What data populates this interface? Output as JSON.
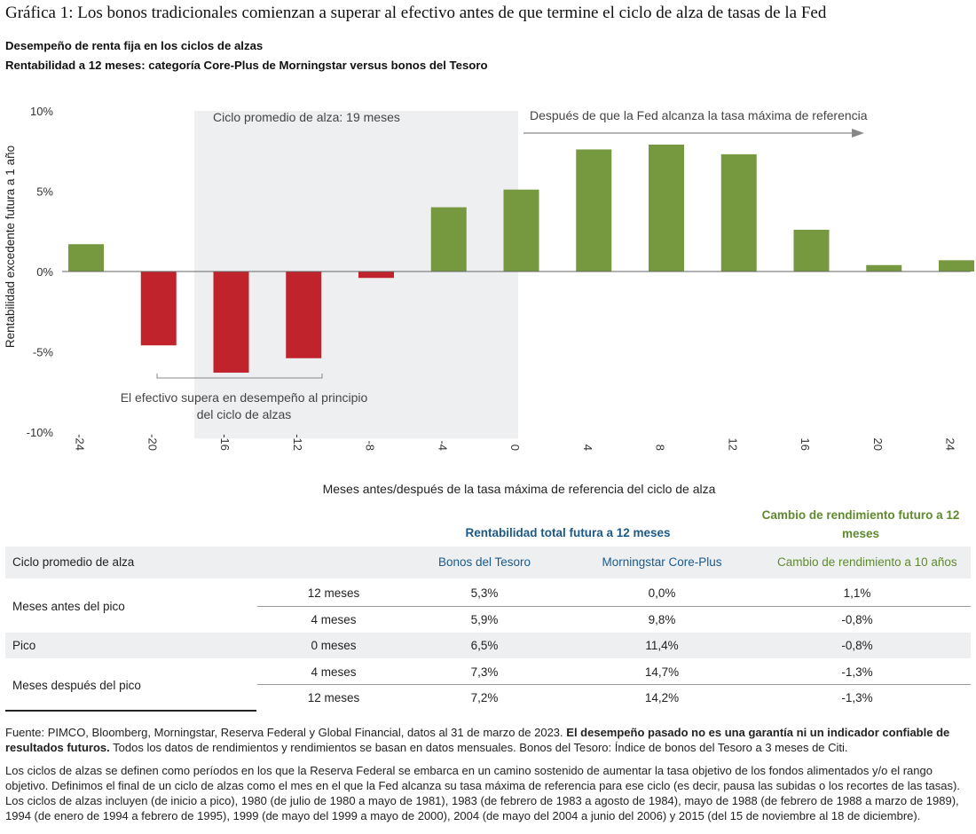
{
  "title": "Gráfica 1: Los bonos tradicionales comienzan a superar al efectivo antes de que termine el ciclo de alza de tasas de la Fed",
  "subtitle1": "Desempeño de renta fija en los ciclos de alzas",
  "subtitle2": "Rentabilidad a 12 meses: categoría Core-Plus de Morningstar versus bonos del Tesoro",
  "colors": {
    "negative": "#c0232c",
    "positive": "#76983f",
    "shade": "#eeeff1",
    "table_blue": "#1a5a8a",
    "table_green": "#5f8a2e"
  },
  "chart_data": {
    "type": "bar",
    "categories": [
      "-24",
      "-20",
      "-16",
      "-12",
      "-8",
      "-4",
      "0",
      "4",
      "8",
      "12",
      "16",
      "20",
      "24"
    ],
    "values": [
      1.7,
      -4.6,
      -6.3,
      -5.4,
      -0.4,
      4.0,
      5.1,
      7.6,
      7.9,
      7.3,
      2.6,
      0.4,
      0.7
    ],
    "ylabel": "Rentabilidad excedente futura a 1 año",
    "xlabel": "Meses antes/después de la tasa máxima de referencia del ciclo de alza",
    "ylim": [
      -10,
      10
    ],
    "yticks": [
      "10%",
      "5%",
      "0%",
      "-5%",
      "-10%"
    ],
    "shaded_region_label": "Ciclo promedio de alza: 19 meses",
    "arrow_label": "Después de que la Fed alcanza la tasa máxima de referencia",
    "bracket_label_line1": "El efectivo supera en desempeño al principio",
    "bracket_label_line2": "del ciclo de alzas"
  },
  "table": {
    "group_total": "Rentabilidad total futura a 12 meses",
    "group_yield_line1": "Cambio de rendimiento futuro a 12",
    "group_yield_line2": "meses",
    "header": [
      "Ciclo promedio de alza",
      "Bonos del Tesoro",
      "Morningstar Core-Plus",
      "Cambio de rendimiento a 10 años"
    ],
    "rows": [
      {
        "group": "Meses antes del pico",
        "sub": "12 meses",
        "tesoro": "5,3%",
        "coreplus": "0,0%",
        "yield": "1,1%"
      },
      {
        "group": "",
        "sub": "4 meses",
        "tesoro": "5,9%",
        "coreplus": "9,8%",
        "yield": "-0,8%"
      },
      {
        "group": "Pico",
        "sub": "0 meses",
        "tesoro": "6,5%",
        "coreplus": "11,4%",
        "yield": "-0,8%"
      },
      {
        "group": "Meses después del pico",
        "sub": "4 meses",
        "tesoro": "7,3%",
        "coreplus": "14,7%",
        "yield": "-1,3%"
      },
      {
        "group": "",
        "sub": "12 meses",
        "tesoro": "7,2%",
        "coreplus": "14,2%",
        "yield": "-1,3%"
      }
    ]
  },
  "footnote": {
    "source": "Fuente: PIMCO, Bloomberg, Morningstar, Reserva Federal y Global Financial, datos al 31 de marzo de 2023.",
    "disclaimer": "El desempeño pasado no es una garantía ni un indicador confiable de resultados futuros.",
    "source_tail": "Todos los datos de rendimientos y rendimientos se basan en datos mensuales. Bonos del Tesoro: Índice de bonos del Tesoro a 3 meses de Citi.",
    "definition": "Los ciclos de alzas se definen como períodos en los que la Reserva Federal se embarca en un camino sostenido de aumentar la tasa objetivo de los fondos alimentados y/o el rango objetivo. Definimos el final de un ciclo de alzas como el mes en el que la Fed alcanza su tasa máxima de referencia para ese ciclo (es decir, pausa las subidas o los recortes de las tasas). Los ciclos de alzas incluyen (de inicio a pico), 1980 (de julio de 1980 a mayo de 1981), 1983 (de febrero de 1983 a agosto de 1984), mayo de 1988 (de febrero de 1988 a marzo de 1989), 1994 (de enero de 1994 a febrero de 1995), 1999 (de mayo del 1999 a mayo de 2000), 2004 (de mayo del 2004 a junio del 2006) y 2015 (del 15 de noviembre al 18 de diciembre)."
  }
}
